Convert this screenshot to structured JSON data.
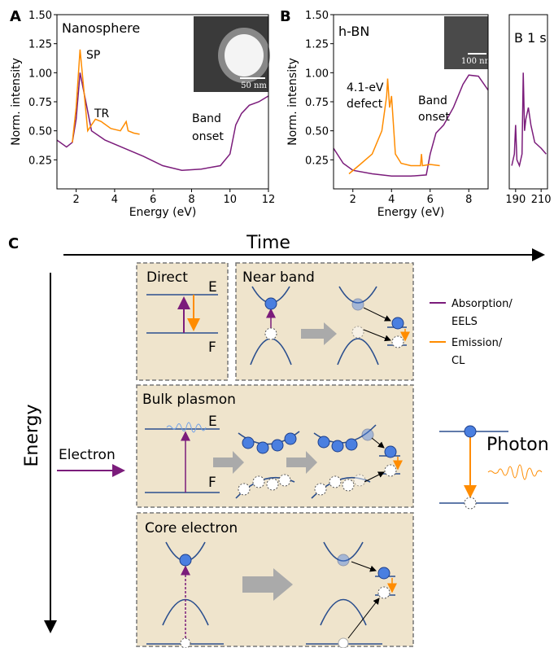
{
  "chart_data": [
    {
      "type": "line",
      "label": "A",
      "xlabel": "Energy (eV)",
      "ylabel": "Norm. intensity",
      "xlim": [
        1,
        12
      ],
      "xticks": [
        2,
        4,
        6,
        8,
        10,
        12
      ],
      "ylim": [
        0,
        1.5
      ],
      "yticks": [
        {
          "value": 0.25,
          "label": "0.25"
        },
        {
          "value": 0.5,
          "label": "0.50"
        },
        {
          "value": 0.75,
          "label": "0.75"
        },
        {
          "value": 1.0,
          "label": "1.00"
        },
        {
          "value": 1.25,
          "label": "1.25"
        },
        {
          "value": 1.5,
          "label": "1.50"
        }
      ],
      "annotations": [
        [
          "Nanosphere"
        ],
        [
          "SP"
        ],
        [
          "TR"
        ],
        [
          "Band",
          "onset"
        ]
      ],
      "scale_bar": "50 nm",
      "series": [
        {
          "color": "#7b1c7b",
          "x": [
            1,
            1.5,
            1.8,
            2.0,
            2.2,
            2.5,
            2.8,
            3.5,
            4.5,
            5.5,
            6.5,
            7.5,
            8.5,
            9.5,
            10.0,
            10.3,
            10.6,
            11.0,
            11.5,
            12
          ],
          "values": [
            0.42,
            0.36,
            0.4,
            0.6,
            1.0,
            0.75,
            0.5,
            0.42,
            0.35,
            0.28,
            0.2,
            0.16,
            0.17,
            0.2,
            0.3,
            0.55,
            0.65,
            0.72,
            0.75,
            0.8
          ]
        },
        {
          "color": "#ff8c00",
          "x": [
            1.8,
            2.0,
            2.2,
            2.4,
            2.6,
            2.8,
            3.0,
            3.3,
            3.8,
            4.3,
            4.6,
            4.7,
            5.0,
            5.3
          ],
          "values": [
            0.4,
            0.7,
            1.2,
            0.85,
            0.5,
            0.55,
            0.6,
            0.58,
            0.52,
            0.5,
            0.58,
            0.5,
            0.48,
            0.47
          ]
        }
      ]
    },
    {
      "type": "line",
      "label": "B",
      "xlabel": "Energy (eV)",
      "ylabel": "Norm. intensity",
      "xlim": [
        1,
        9
      ],
      "xticks": [
        2,
        4,
        6,
        8
      ],
      "ylim": [
        0,
        1.5
      ],
      "yticks": [
        {
          "value": 0.25,
          "label": "0.25"
        },
        {
          "value": 0.5,
          "label": "0.50"
        },
        {
          "value": 0.75,
          "label": "0.75"
        },
        {
          "value": 1.0,
          "label": "1.00"
        },
        {
          "value": 1.25,
          "label": "1.25"
        },
        {
          "value": 1.5,
          "label": "1.50"
        }
      ],
      "annotations": [
        [
          "h-BN"
        ],
        [
          "4.1-eV",
          "defect"
        ],
        [
          "Band",
          "onset"
        ]
      ],
      "scale_bar": "100 nm",
      "series": [
        {
          "color": "#7b1c7b",
          "x": [
            1,
            1.5,
            2,
            3,
            4,
            5,
            5.8,
            6.0,
            6.3,
            6.7,
            7.2,
            7.7,
            8.0,
            8.5,
            9
          ],
          "values": [
            0.35,
            0.22,
            0.16,
            0.13,
            0.11,
            0.11,
            0.12,
            0.3,
            0.48,
            0.55,
            0.7,
            0.9,
            0.98,
            0.97,
            0.85
          ]
        },
        {
          "color": "#ff8c00",
          "x": [
            1.8,
            2.3,
            3.0,
            3.5,
            3.75,
            3.8,
            3.9,
            4.0,
            4.2,
            4.5,
            5.0,
            5.5,
            5.55,
            5.6,
            6.0,
            6.5
          ],
          "values": [
            0.13,
            0.2,
            0.3,
            0.5,
            0.8,
            0.95,
            0.7,
            0.8,
            0.3,
            0.22,
            0.2,
            0.2,
            0.3,
            0.2,
            0.21,
            0.2
          ]
        }
      ]
    },
    {
      "type": "line",
      "xlim": [
        185,
        215
      ],
      "xticks": [
        190,
        210
      ],
      "ylim": [
        0,
        1.5
      ],
      "annotations": [
        [
          "B 1 s"
        ]
      ],
      "series": [
        {
          "color": "#7b1c7b",
          "x": [
            187,
            189,
            190,
            191,
            193,
            195,
            196,
            197,
            198,
            200,
            202,
            205,
            210,
            214
          ],
          "values": [
            0.2,
            0.3,
            0.55,
            0.25,
            0.2,
            0.3,
            1.0,
            0.5,
            0.6,
            0.7,
            0.55,
            0.4,
            0.35,
            0.3
          ]
        }
      ]
    }
  ],
  "diagram": {
    "panel": "C",
    "time_axis": "Time",
    "energy_axis": "Energy",
    "direct": {
      "title": "Direct",
      "upper": "E",
      "lower": "F"
    },
    "near_band": {
      "title": "Near band"
    },
    "bulk_plasmon": {
      "title": "Bulk plasmon",
      "upper": "E",
      "lower": "F"
    },
    "core_electron": {
      "title": "Core electron"
    },
    "legend": [
      [
        "Absorption/",
        "EELS"
      ],
      [
        "Emission/",
        "CL"
      ]
    ],
    "input": "Electron",
    "output": "Photon"
  }
}
